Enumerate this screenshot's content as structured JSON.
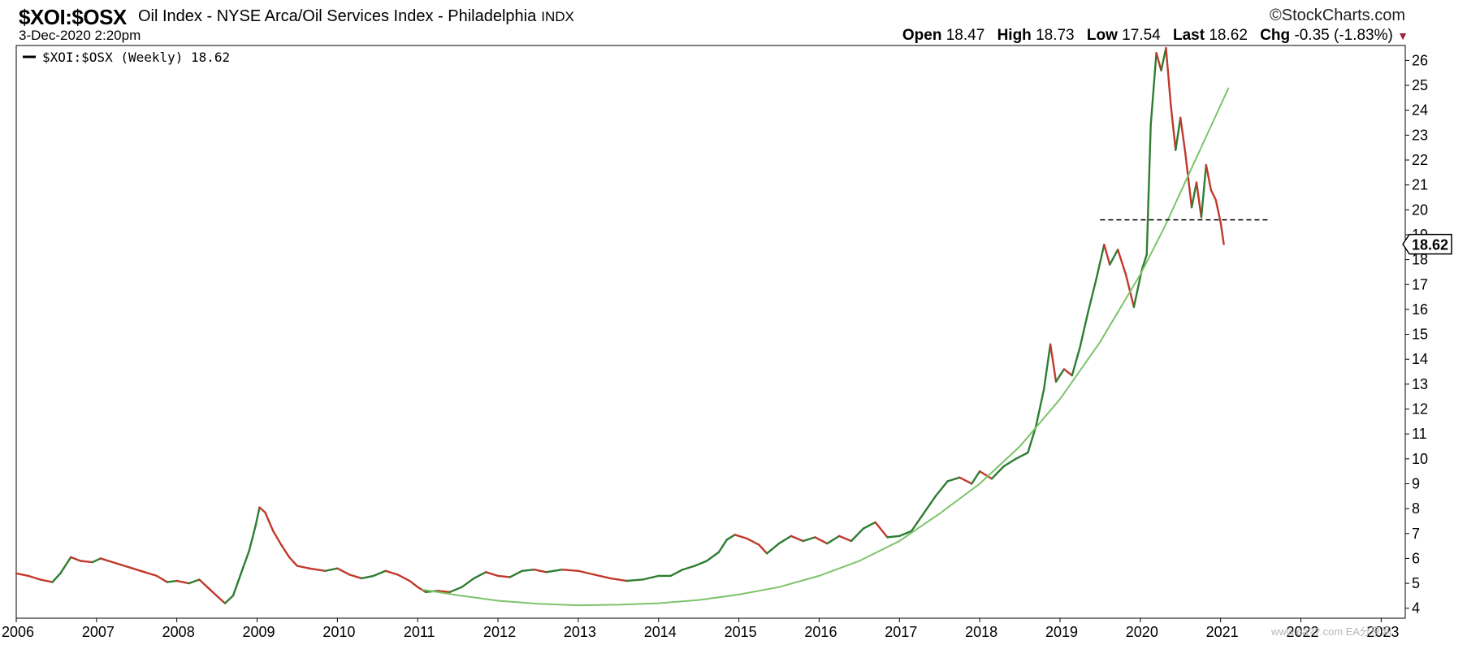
{
  "header": {
    "symbol": "$XOI:$OSX",
    "description": "Oil Index - NYSE Arca/Oil Services Index - Philadelphia",
    "exchange": "INDX",
    "brand": "StockCharts.com",
    "brand_icon": "copyright-icon",
    "datetime": "3-Dec-2020 2:20pm",
    "open_label": "Open",
    "open": "18.47",
    "high_label": "High",
    "high": "18.73",
    "low_label": "Low",
    "low": "17.54",
    "last_label": "Last",
    "last": "18.62",
    "chg_label": "Chg",
    "chg": "-0.35 (-1.83%)",
    "chg_icon": "down-triangle-icon"
  },
  "watermark": "www.ea??.com  EA分享网",
  "chart_data": {
    "type": "line",
    "legend": "$XOI:$OSX (Weekly) 18.62",
    "last_value_label": "18.62",
    "x_ticks": [
      "2006",
      "2007",
      "2008",
      "2009",
      "2010",
      "2011",
      "2012",
      "2013",
      "2014",
      "2015",
      "2016",
      "2017",
      "2018",
      "2019",
      "2020",
      "2021",
      "2022",
      "2023"
    ],
    "y_ticks": [
      4,
      5,
      6,
      7,
      8,
      9,
      10,
      11,
      12,
      13,
      14,
      15,
      16,
      17,
      18,
      19,
      20,
      21,
      22,
      23,
      24,
      25,
      26
    ],
    "xlim": [
      2006.0,
      2023.3
    ],
    "ylim": [
      3.6,
      26.6
    ],
    "up_color": "#2e7d32",
    "down_color": "#c0392b",
    "series": [
      {
        "values": [
          [
            2006.0,
            5.4
          ],
          [
            2006.15,
            5.3
          ],
          [
            2006.3,
            5.15
          ],
          [
            2006.45,
            5.05
          ],
          [
            2006.55,
            5.4
          ],
          [
            2006.68,
            6.05
          ],
          [
            2006.8,
            5.9
          ],
          [
            2006.95,
            5.85
          ],
          [
            2007.05,
            6.0
          ],
          [
            2007.15,
            5.9
          ],
          [
            2007.3,
            5.75
          ],
          [
            2007.45,
            5.6
          ],
          [
            2007.6,
            5.45
          ],
          [
            2007.75,
            5.3
          ],
          [
            2007.88,
            5.05
          ],
          [
            2008.0,
            5.1
          ],
          [
            2008.15,
            5.0
          ],
          [
            2008.28,
            5.15
          ],
          [
            2008.38,
            4.85
          ],
          [
            2008.48,
            4.55
          ],
          [
            2008.6,
            4.2
          ],
          [
            2008.7,
            4.5
          ],
          [
            2008.8,
            5.4
          ],
          [
            2008.9,
            6.3
          ],
          [
            2008.98,
            7.3
          ],
          [
            2009.03,
            8.05
          ],
          [
            2009.1,
            7.85
          ],
          [
            2009.2,
            7.1
          ],
          [
            2009.3,
            6.55
          ],
          [
            2009.4,
            6.05
          ],
          [
            2009.5,
            5.7
          ],
          [
            2009.65,
            5.6
          ],
          [
            2009.85,
            5.5
          ],
          [
            2010.0,
            5.6
          ],
          [
            2010.15,
            5.35
          ],
          [
            2010.3,
            5.2
          ],
          [
            2010.45,
            5.3
          ],
          [
            2010.6,
            5.5
          ],
          [
            2010.75,
            5.35
          ],
          [
            2010.9,
            5.1
          ],
          [
            2011.0,
            4.85
          ],
          [
            2011.1,
            4.65
          ],
          [
            2011.25,
            4.7
          ],
          [
            2011.4,
            4.65
          ],
          [
            2011.55,
            4.85
          ],
          [
            2011.7,
            5.2
          ],
          [
            2011.85,
            5.45
          ],
          [
            2012.0,
            5.3
          ],
          [
            2012.15,
            5.25
          ],
          [
            2012.3,
            5.5
          ],
          [
            2012.45,
            5.55
          ],
          [
            2012.6,
            5.45
          ],
          [
            2012.8,
            5.55
          ],
          [
            2013.0,
            5.5
          ],
          [
            2013.2,
            5.35
          ],
          [
            2013.4,
            5.2
          ],
          [
            2013.6,
            5.1
          ],
          [
            2013.8,
            5.15
          ],
          [
            2014.0,
            5.3
          ],
          [
            2014.15,
            5.3
          ],
          [
            2014.3,
            5.55
          ],
          [
            2014.45,
            5.7
          ],
          [
            2014.6,
            5.9
          ],
          [
            2014.75,
            6.25
          ],
          [
            2014.85,
            6.75
          ],
          [
            2014.95,
            6.95
          ],
          [
            2015.1,
            6.8
          ],
          [
            2015.25,
            6.55
          ],
          [
            2015.35,
            6.2
          ],
          [
            2015.5,
            6.6
          ],
          [
            2015.65,
            6.9
          ],
          [
            2015.8,
            6.7
          ],
          [
            2015.95,
            6.85
          ],
          [
            2016.1,
            6.6
          ],
          [
            2016.25,
            6.9
          ],
          [
            2016.4,
            6.7
          ],
          [
            2016.55,
            7.2
          ],
          [
            2016.7,
            7.45
          ],
          [
            2016.85,
            6.85
          ],
          [
            2017.0,
            6.9
          ],
          [
            2017.15,
            7.1
          ],
          [
            2017.3,
            7.8
          ],
          [
            2017.45,
            8.5
          ],
          [
            2017.6,
            9.1
          ],
          [
            2017.75,
            9.25
          ],
          [
            2017.9,
            9.0
          ],
          [
            2018.0,
            9.5
          ],
          [
            2018.15,
            9.2
          ],
          [
            2018.3,
            9.7
          ],
          [
            2018.45,
            10.0
          ],
          [
            2018.6,
            10.25
          ],
          [
            2018.7,
            11.3
          ],
          [
            2018.8,
            12.8
          ],
          [
            2018.88,
            14.6
          ],
          [
            2018.95,
            13.1
          ],
          [
            2019.05,
            13.6
          ],
          [
            2019.15,
            13.35
          ],
          [
            2019.25,
            14.5
          ],
          [
            2019.35,
            15.9
          ],
          [
            2019.45,
            17.2
          ],
          [
            2019.55,
            18.6
          ],
          [
            2019.62,
            17.8
          ],
          [
            2019.72,
            18.4
          ],
          [
            2019.82,
            17.4
          ],
          [
            2019.92,
            16.1
          ],
          [
            2020.02,
            17.6
          ],
          [
            2020.08,
            18.2
          ],
          [
            2020.13,
            23.4
          ],
          [
            2020.2,
            26.3
          ],
          [
            2020.26,
            25.6
          ],
          [
            2020.32,
            26.5
          ],
          [
            2020.38,
            24.2
          ],
          [
            2020.44,
            22.4
          ],
          [
            2020.5,
            23.7
          ],
          [
            2020.56,
            22.3
          ],
          [
            2020.64,
            20.1
          ],
          [
            2020.7,
            21.1
          ],
          [
            2020.76,
            19.7
          ],
          [
            2020.82,
            21.8
          ],
          [
            2020.88,
            20.8
          ],
          [
            2020.94,
            20.4
          ],
          [
            2021.0,
            19.5
          ],
          [
            2021.04,
            18.62
          ]
        ]
      },
      {
        "color": "#7dc36b",
        "values": [
          [
            2011.05,
            4.75
          ],
          [
            2011.5,
            4.52
          ],
          [
            2012.0,
            4.3
          ],
          [
            2012.5,
            4.18
          ],
          [
            2013.0,
            4.12
          ],
          [
            2013.5,
            4.14
          ],
          [
            2014.0,
            4.2
          ],
          [
            2014.5,
            4.33
          ],
          [
            2015.0,
            4.55
          ],
          [
            2015.5,
            4.85
          ],
          [
            2016.0,
            5.3
          ],
          [
            2016.5,
            5.9
          ],
          [
            2017.0,
            6.7
          ],
          [
            2017.5,
            7.8
          ],
          [
            2018.0,
            9.0
          ],
          [
            2018.5,
            10.5
          ],
          [
            2019.0,
            12.4
          ],
          [
            2019.5,
            14.7
          ],
          [
            2020.0,
            17.4
          ],
          [
            2020.3,
            19.3
          ],
          [
            2020.6,
            21.4
          ],
          [
            2020.9,
            23.5
          ],
          [
            2021.1,
            24.9
          ]
        ]
      }
    ],
    "annotations": [
      {
        "type": "hline",
        "style": "dashed",
        "y": 19.6,
        "x": [
          2019.5,
          2021.6
        ]
      }
    ]
  }
}
